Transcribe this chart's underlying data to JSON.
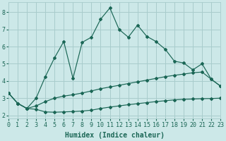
{
  "xlabel": "Humidex (Indice chaleur)",
  "bg_color": "#cce8e8",
  "grid_color": "#a8cccc",
  "line_color": "#1a6655",
  "xlim": [
    0,
    23
  ],
  "ylim": [
    1.8,
    8.6
  ],
  "xticks": [
    0,
    1,
    2,
    3,
    4,
    5,
    6,
    7,
    8,
    9,
    10,
    11,
    12,
    13,
    14,
    15,
    16,
    17,
    18,
    19,
    20,
    21,
    22,
    23
  ],
  "yticks": [
    2,
    3,
    4,
    5,
    6,
    7,
    8
  ],
  "line1_y": [
    3.3,
    2.7,
    2.4,
    2.35,
    2.2,
    2.18,
    2.2,
    2.22,
    2.25,
    2.3,
    2.4,
    2.48,
    2.55,
    2.62,
    2.68,
    2.74,
    2.8,
    2.85,
    2.9,
    2.93,
    2.95,
    2.97,
    2.98,
    3.0
  ],
  "line2_y": [
    3.3,
    2.7,
    2.4,
    2.55,
    2.8,
    3.0,
    3.12,
    3.2,
    3.3,
    3.42,
    3.55,
    3.65,
    3.75,
    3.85,
    3.95,
    4.05,
    4.15,
    4.25,
    4.33,
    4.4,
    4.48,
    4.52,
    4.1,
    3.7
  ],
  "line3_y": [
    3.3,
    2.7,
    2.4,
    3.0,
    4.25,
    5.35,
    6.3,
    4.15,
    6.25,
    6.55,
    7.6,
    8.25,
    7.0,
    6.55,
    7.25,
    6.6,
    6.3,
    5.85,
    5.15,
    5.05,
    4.65,
    5.0,
    4.1,
    3.7
  ],
  "marker": "D",
  "markersize": 2.0,
  "linewidth": 0.85,
  "xlabel_fontsize": 7,
  "tick_fontsize": 6
}
